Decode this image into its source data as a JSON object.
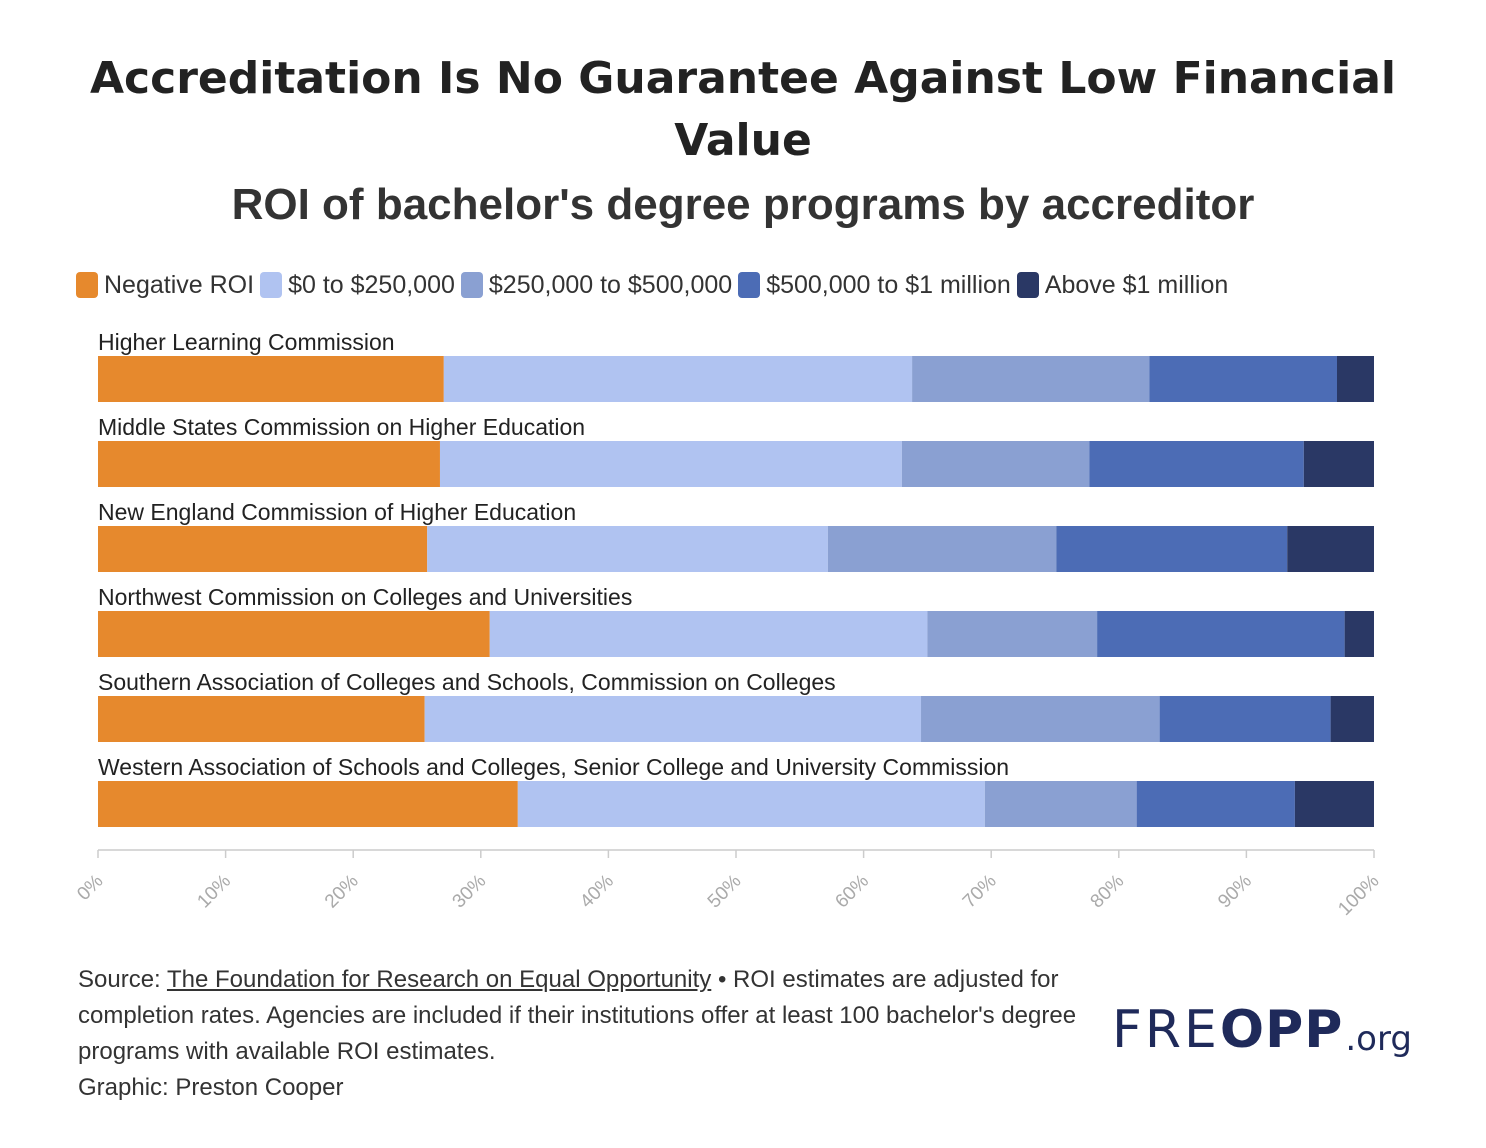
{
  "title_lines": [
    "Accreditation Is No Guarantee Against Low Financial",
    "Value"
  ],
  "subtitle": "ROI of bachelor's degree programs by accreditor",
  "legend": [
    {
      "label": "Negative ROI",
      "color": "#e6892d"
    },
    {
      "label": "$0 to $250,000",
      "color": "#b0c3f1"
    },
    {
      "label": "$250,000 to $500,000",
      "color": "#8aa0d2"
    },
    {
      "label": "$500,000 to $1 million",
      "color": "#4c6cb5"
    },
    {
      "label": "Above $1 million",
      "color": "#2a3865"
    }
  ],
  "chart_data": {
    "type": "bar",
    "orientation": "horizontal",
    "stacked": true,
    "categories": [
      "Higher Learning Commission",
      "Middle States Commission on Higher Education",
      "New England Commission of Higher Education",
      "Northwest Commission on Colleges and Universities",
      "Southern Association of Colleges and Schools, Commission on Colleges",
      "Western Association of Schools and Colleges, Senior College and University Commission"
    ],
    "series": [
      {
        "name": "Negative ROI",
        "values": [
          27.1,
          26.8,
          25.8,
          30.7,
          25.6,
          32.9
        ]
      },
      {
        "name": "$0 to $250,000",
        "values": [
          36.7,
          36.2,
          31.4,
          34.3,
          38.9,
          36.6
        ]
      },
      {
        "name": "$250,000 to $500,000",
        "values": [
          18.6,
          14.7,
          17.9,
          13.3,
          18.7,
          11.9
        ]
      },
      {
        "name": "$500,000 to $1 million",
        "values": [
          14.7,
          16.8,
          18.1,
          19.4,
          13.4,
          12.4
        ]
      },
      {
        "name": "Above $1 million",
        "values": [
          2.9,
          5.5,
          6.8,
          2.3,
          3.4,
          6.2
        ]
      }
    ],
    "xlim": [
      0,
      100
    ],
    "x_ticks": [
      "0%",
      "10%",
      "20%",
      "30%",
      "40%",
      "50%",
      "60%",
      "70%",
      "80%",
      "90%",
      "100%"
    ],
    "grid": false
  },
  "footer": {
    "source_prefix": "Source: ",
    "source_link": "The Foundation for Research on Equal Opportunity",
    "note": " • ROI estimates are adjusted for completion rates. Agencies are included if their institutions offer at least 100 bachelor's degree programs with available ROI estimates.",
    "credit": "Graphic: Preston Cooper"
  },
  "logo": {
    "part1": "FRE",
    "part2": "OPP",
    "part3": ".org"
  }
}
